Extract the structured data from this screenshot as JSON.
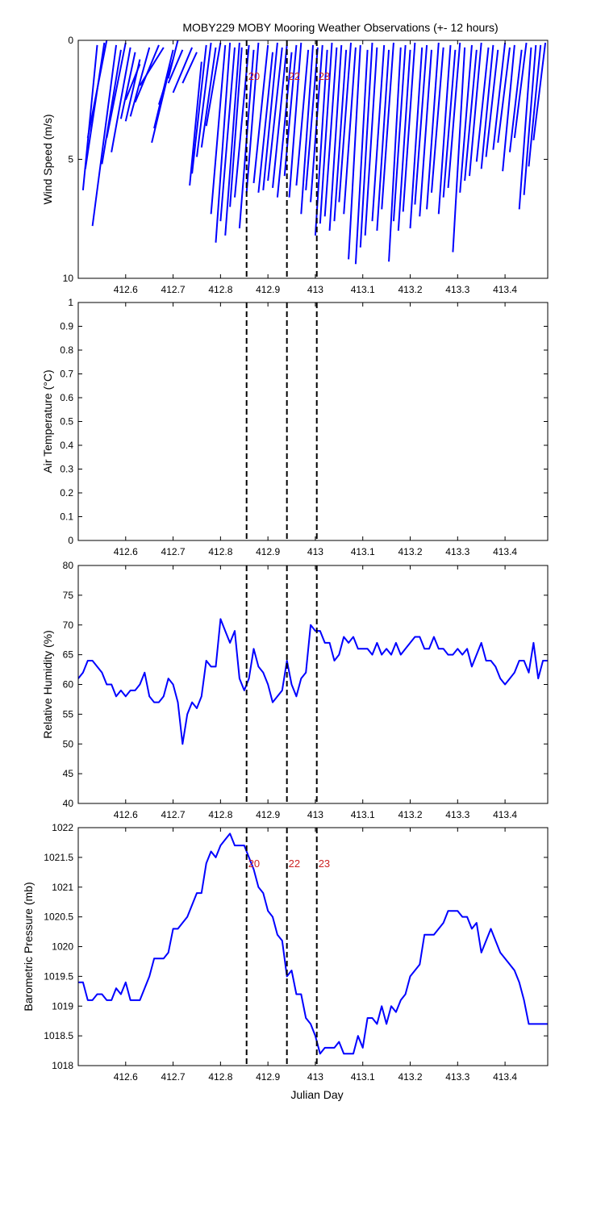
{
  "figure": {
    "title": "MOBY229 MOBY Mooring Weather Observations (+- 12 hours)",
    "xlabel": "Julian Day"
  },
  "colors": {
    "series": "#0000ff",
    "marker_line": "#000000",
    "marker_label": "#cc2222",
    "axes": "#000000",
    "background": "#ffffff"
  },
  "chart_data": [
    {
      "id": "wind",
      "type": "line",
      "ylabel": "Wind Speed (m/s)",
      "ylim": [
        0,
        10
      ],
      "y_reversed": true,
      "xlim": [
        412.5,
        413.49
      ],
      "xticks": [
        412.6,
        412.7,
        412.8,
        412.9,
        413,
        413.1,
        413.2,
        413.3,
        413.4
      ],
      "xticklabels": [
        "412.6",
        "412.7",
        "412.8",
        "412.9",
        "413",
        "413.1",
        "413.2",
        "413.3",
        "413.4"
      ],
      "yticks": [
        0,
        5,
        10
      ],
      "yticklabels": [
        "0",
        "5",
        "10"
      ],
      "show_marker_labels": true,
      "stick_segments": [
        {
          "x0": 412.51,
          "y0": 6.3,
          "x1": 412.54,
          "y1": 0.2
        },
        {
          "x0": 412.515,
          "y0": 5.4,
          "x1": 412.555,
          "y1": 0.1
        },
        {
          "x0": 412.52,
          "y0": 4.1,
          "x1": 412.56,
          "y1": 0.0
        },
        {
          "x0": 412.53,
          "y0": 7.8,
          "x1": 412.58,
          "y1": 0.2
        },
        {
          "x0": 412.55,
          "y0": 5.2,
          "x1": 412.59,
          "y1": 0.4
        },
        {
          "x0": 412.56,
          "y0": 4.1,
          "x1": 412.6,
          "y1": 0.1
        },
        {
          "x0": 412.57,
          "y0": 4.7,
          "x1": 412.61,
          "y1": 0.3
        },
        {
          "x0": 412.59,
          "y0": 3.3,
          "x1": 412.62,
          "y1": 0.5
        },
        {
          "x0": 412.6,
          "y0": 3.4,
          "x1": 412.63,
          "y1": 0.8
        },
        {
          "x0": 412.61,
          "y0": 3.2,
          "x1": 412.65,
          "y1": 0.3
        },
        {
          "x0": 412.62,
          "y0": 2.6,
          "x1": 412.67,
          "y1": 0.2
        },
        {
          "x0": 412.63,
          "y0": 1.9,
          "x1": 412.68,
          "y1": 0.3
        },
        {
          "x0": 412.6,
          "y0": 2.5,
          "x1": 412.63,
          "y1": 1.0
        },
        {
          "x0": 412.655,
          "y0": 4.3,
          "x1": 412.69,
          "y1": 1.4
        },
        {
          "x0": 412.66,
          "y0": 3.7,
          "x1": 412.7,
          "y1": 0.4
        },
        {
          "x0": 412.67,
          "y0": 2.7,
          "x1": 412.7,
          "y1": 0.8
        },
        {
          "x0": 412.69,
          "y0": 1.8,
          "x1": 412.72,
          "y1": 0.4
        },
        {
          "x0": 412.7,
          "y0": 2.2,
          "x1": 412.74,
          "y1": 0.3
        },
        {
          "x0": 412.69,
          "y0": 1.6,
          "x1": 412.71,
          "y1": 0.0
        },
        {
          "x0": 412.72,
          "y0": 1.8,
          "x1": 412.75,
          "y1": 0.5
        },
        {
          "x0": 412.735,
          "y0": 6.1,
          "x1": 412.76,
          "y1": 0.9
        },
        {
          "x0": 412.74,
          "y0": 5.6,
          "x1": 412.77,
          "y1": 0.2
        },
        {
          "x0": 412.75,
          "y0": 4.9,
          "x1": 412.78,
          "y1": 0.1
        },
        {
          "x0": 412.76,
          "y0": 4.5,
          "x1": 412.79,
          "y1": 0.3
        },
        {
          "x0": 412.77,
          "y0": 3.6,
          "x1": 412.8,
          "y1": 0.1
        },
        {
          "x0": 412.78,
          "y0": 7.3,
          "x1": 412.81,
          "y1": 0.2
        },
        {
          "x0": 412.79,
          "y0": 8.5,
          "x1": 412.82,
          "y1": 0.1
        },
        {
          "x0": 412.8,
          "y0": 7.6,
          "x1": 412.83,
          "y1": 0.3
        },
        {
          "x0": 412.81,
          "y0": 8.2,
          "x1": 412.84,
          "y1": 0.1
        },
        {
          "x0": 412.82,
          "y0": 7.0,
          "x1": 412.845,
          "y1": 0.3
        },
        {
          "x0": 412.83,
          "y0": 6.6,
          "x1": 412.86,
          "y1": 0.2
        },
        {
          "x0": 412.84,
          "y0": 7.9,
          "x1": 412.87,
          "y1": 0.4
        },
        {
          "x0": 412.855,
          "y0": 6.4,
          "x1": 412.88,
          "y1": 0.1
        },
        {
          "x0": 412.87,
          "y0": 6.0,
          "x1": 412.9,
          "y1": 0.2
        },
        {
          "x0": 412.88,
          "y0": 6.4,
          "x1": 412.91,
          "y1": 0.5
        },
        {
          "x0": 412.89,
          "y0": 6.3,
          "x1": 412.92,
          "y1": 0.1
        },
        {
          "x0": 412.9,
          "y0": 5.9,
          "x1": 412.93,
          "y1": 0.3
        },
        {
          "x0": 412.91,
          "y0": 6.2,
          "x1": 412.94,
          "y1": 0.2
        },
        {
          "x0": 412.92,
          "y0": 6.6,
          "x1": 412.95,
          "y1": 0.5
        },
        {
          "x0": 412.935,
          "y0": 5.7,
          "x1": 412.96,
          "y1": 0.2
        },
        {
          "x0": 412.945,
          "y0": 6.6,
          "x1": 412.97,
          "y1": 0.1
        },
        {
          "x0": 412.96,
          "y0": 6.1,
          "x1": 412.985,
          "y1": 0.4
        },
        {
          "x0": 412.97,
          "y0": 7.3,
          "x1": 412.995,
          "y1": 0.2
        },
        {
          "x0": 412.98,
          "y0": 6.3,
          "x1": 413.005,
          "y1": 0.3
        },
        {
          "x0": 412.99,
          "y0": 6.8,
          "x1": 413.015,
          "y1": 0.2
        },
        {
          "x0": 413.0,
          "y0": 8.2,
          "x1": 413.025,
          "y1": 0.4
        },
        {
          "x0": 413.01,
          "y0": 7.7,
          "x1": 413.035,
          "y1": 0.1
        },
        {
          "x0": 413.02,
          "y0": 7.4,
          "x1": 413.045,
          "y1": 0.3
        },
        {
          "x0": 413.03,
          "y0": 8.0,
          "x1": 413.055,
          "y1": 0.2
        },
        {
          "x0": 413.04,
          "y0": 7.6,
          "x1": 413.065,
          "y1": 0.4
        },
        {
          "x0": 413.05,
          "y0": 6.8,
          "x1": 413.075,
          "y1": 0.1
        },
        {
          "x0": 413.06,
          "y0": 7.3,
          "x1": 413.085,
          "y1": 0.3
        },
        {
          "x0": 413.07,
          "y0": 9.2,
          "x1": 413.095,
          "y1": 0.2
        },
        {
          "x0": 413.085,
          "y0": 9.4,
          "x1": 413.11,
          "y1": 0.4
        },
        {
          "x0": 413.095,
          "y0": 8.7,
          "x1": 413.12,
          "y1": 0.1
        },
        {
          "x0": 413.105,
          "y0": 8.2,
          "x1": 413.13,
          "y1": 0.3
        },
        {
          "x0": 413.12,
          "y0": 7.6,
          "x1": 413.145,
          "y1": 0.2
        },
        {
          "x0": 413.13,
          "y0": 8.0,
          "x1": 413.155,
          "y1": 0.4
        },
        {
          "x0": 413.14,
          "y0": 7.1,
          "x1": 413.165,
          "y1": 0.1
        },
        {
          "x0": 413.155,
          "y0": 9.3,
          "x1": 413.18,
          "y1": 0.3
        },
        {
          "x0": 413.165,
          "y0": 7.6,
          "x1": 413.19,
          "y1": 0.2
        },
        {
          "x0": 413.175,
          "y0": 8.0,
          "x1": 413.2,
          "y1": 0.4
        },
        {
          "x0": 413.185,
          "y0": 7.2,
          "x1": 413.21,
          "y1": 0.1
        },
        {
          "x0": 413.2,
          "y0": 7.9,
          "x1": 413.225,
          "y1": 0.3
        },
        {
          "x0": 413.21,
          "y0": 6.9,
          "x1": 413.235,
          "y1": 0.2
        },
        {
          "x0": 413.22,
          "y0": 7.4,
          "x1": 413.245,
          "y1": 0.4
        },
        {
          "x0": 413.235,
          "y0": 7.1,
          "x1": 413.26,
          "y1": 0.1
        },
        {
          "x0": 413.245,
          "y0": 6.4,
          "x1": 413.27,
          "y1": 0.3
        },
        {
          "x0": 413.26,
          "y0": 7.3,
          "x1": 413.285,
          "y1": 0.2
        },
        {
          "x0": 413.27,
          "y0": 6.6,
          "x1": 413.295,
          "y1": 0.4
        },
        {
          "x0": 413.28,
          "y0": 6.2,
          "x1": 413.305,
          "y1": 0.1
        },
        {
          "x0": 413.29,
          "y0": 8.9,
          "x1": 413.315,
          "y1": 0.3
        },
        {
          "x0": 413.305,
          "y0": 6.4,
          "x1": 413.33,
          "y1": 0.2
        },
        {
          "x0": 413.315,
          "y0": 5.9,
          "x1": 413.34,
          "y1": 0.4
        },
        {
          "x0": 413.325,
          "y0": 5.7,
          "x1": 413.35,
          "y1": 0.1
        },
        {
          "x0": 413.34,
          "y0": 5.1,
          "x1": 413.365,
          "y1": 0.3
        },
        {
          "x0": 413.35,
          "y0": 5.4,
          "x1": 413.375,
          "y1": 0.2
        },
        {
          "x0": 413.36,
          "y0": 4.9,
          "x1": 413.385,
          "y1": 0.4
        },
        {
          "x0": 413.375,
          "y0": 4.6,
          "x1": 413.4,
          "y1": 0.1
        },
        {
          "x0": 413.385,
          "y0": 4.3,
          "x1": 413.41,
          "y1": 0.3
        },
        {
          "x0": 413.395,
          "y0": 5.5,
          "x1": 413.42,
          "y1": 0.2
        },
        {
          "x0": 413.41,
          "y0": 4.7,
          "x1": 413.435,
          "y1": 0.4
        },
        {
          "x0": 413.42,
          "y0": 4.1,
          "x1": 413.445,
          "y1": 0.1
        },
        {
          "x0": 413.43,
          "y0": 7.1,
          "x1": 413.455,
          "y1": 0.3
        },
        {
          "x0": 413.44,
          "y0": 6.5,
          "x1": 413.465,
          "y1": 0.2
        },
        {
          "x0": 413.45,
          "y0": 5.3,
          "x1": 413.475,
          "y1": 0.2
        },
        {
          "x0": 413.46,
          "y0": 4.2,
          "x1": 413.485,
          "y1": 0.1
        }
      ]
    },
    {
      "id": "airtemp",
      "type": "line",
      "ylabel": "Air Temperature (°C)",
      "ylim": [
        0,
        1
      ],
      "xlim": [
        412.5,
        413.49
      ],
      "xticks": [
        412.6,
        412.7,
        412.8,
        412.9,
        413,
        413.1,
        413.2,
        413.3,
        413.4
      ],
      "xticklabels": [
        "412.6",
        "412.7",
        "412.8",
        "412.9",
        "413",
        "413.1",
        "413.2",
        "413.3",
        "413.4"
      ],
      "yticks": [
        0,
        0.1,
        0.2,
        0.3,
        0.4,
        0.5,
        0.6,
        0.7,
        0.8,
        0.9,
        1
      ],
      "yticklabels": [
        "0",
        "0.1",
        "0.2",
        "0.3",
        "0.4",
        "0.5",
        "0.6",
        "0.7",
        "0.8",
        "0.9",
        "1"
      ],
      "show_marker_labels": false,
      "x": [],
      "y": []
    },
    {
      "id": "humidity",
      "type": "line",
      "ylabel": "Relative Humidity (%)",
      "ylim": [
        40,
        80
      ],
      "xlim": [
        412.5,
        413.49
      ],
      "xticks": [
        412.6,
        412.7,
        412.8,
        412.9,
        413,
        413.1,
        413.2,
        413.3,
        413.4
      ],
      "xticklabels": [
        "412.6",
        "412.7",
        "412.8",
        "412.9",
        "413",
        "413.1",
        "413.2",
        "413.3",
        "413.4"
      ],
      "yticks": [
        40,
        45,
        50,
        55,
        60,
        65,
        70,
        75,
        80
      ],
      "yticklabels": [
        "40",
        "45",
        "50",
        "55",
        "60",
        "65",
        "70",
        "75",
        "80"
      ],
      "show_marker_labels": false,
      "x": [
        412.5,
        412.51,
        412.52,
        412.53,
        412.54,
        412.55,
        412.56,
        412.57,
        412.58,
        412.59,
        412.6,
        412.61,
        412.62,
        412.63,
        412.64,
        412.65,
        412.66,
        412.67,
        412.68,
        412.69,
        412.7,
        412.71,
        412.72,
        412.73,
        412.74,
        412.75,
        412.76,
        412.77,
        412.78,
        412.79,
        412.8,
        412.81,
        412.82,
        412.83,
        412.84,
        412.85,
        412.86,
        412.87,
        412.88,
        412.89,
        412.9,
        412.91,
        412.92,
        412.93,
        412.94,
        412.95,
        412.96,
        412.97,
        412.98,
        412.99,
        413.0,
        413.01,
        413.02,
        413.03,
        413.04,
        413.05,
        413.06,
        413.07,
        413.08,
        413.09,
        413.1,
        413.11,
        413.12,
        413.13,
        413.14,
        413.15,
        413.16,
        413.17,
        413.18,
        413.19,
        413.2,
        413.21,
        413.22,
        413.23,
        413.24,
        413.25,
        413.26,
        413.27,
        413.28,
        413.29,
        413.3,
        413.31,
        413.32,
        413.33,
        413.34,
        413.35,
        413.36,
        413.37,
        413.38,
        413.39,
        413.4,
        413.41,
        413.42,
        413.43,
        413.44,
        413.45,
        413.46,
        413.47,
        413.48,
        413.49
      ],
      "y": [
        61,
        62,
        64,
        64,
        63,
        62,
        60,
        60,
        58,
        59,
        58,
        59,
        59,
        60,
        62,
        58,
        57,
        57,
        58,
        61,
        60,
        57,
        50,
        55,
        57,
        56,
        58,
        64,
        63,
        63,
        71,
        69,
        67,
        69,
        61,
        59,
        61,
        66,
        63,
        62,
        60,
        57,
        58,
        59,
        64,
        60,
        58,
        61,
        62,
        70,
        69,
        69,
        67,
        67,
        64,
        65,
        68,
        67,
        68,
        66,
        66,
        66,
        65,
        67,
        65,
        66,
        65,
        67,
        65,
        66,
        67,
        68,
        68,
        66,
        66,
        68,
        66,
        66,
        65,
        65,
        66,
        65,
        66,
        63,
        65,
        67,
        64,
        64,
        63,
        61,
        60,
        61,
        62,
        64,
        64,
        62,
        67,
        61,
        64,
        64
      ]
    },
    {
      "id": "pressure",
      "type": "line",
      "ylabel": "Barometric Pressure (mb)",
      "ylim": [
        1018,
        1022
      ],
      "xlim": [
        412.5,
        413.49
      ],
      "xticks": [
        412.6,
        412.7,
        412.8,
        412.9,
        413,
        413.1,
        413.2,
        413.3,
        413.4
      ],
      "xticklabels": [
        "412.6",
        "412.7",
        "412.8",
        "412.9",
        "413",
        "413.1",
        "413.2",
        "413.3",
        "413.4"
      ],
      "yticks": [
        1018,
        1018.5,
        1019,
        1019.5,
        1020,
        1020.5,
        1021,
        1021.5,
        1022
      ],
      "yticklabels": [
        "1018",
        "1018.5",
        "1019",
        "1019.5",
        "1020",
        "1020.5",
        "1021",
        "1021.5",
        "1022"
      ],
      "show_marker_labels": true,
      "x": [
        412.5,
        412.51,
        412.52,
        412.53,
        412.54,
        412.55,
        412.56,
        412.57,
        412.58,
        412.59,
        412.6,
        412.61,
        412.62,
        412.63,
        412.64,
        412.65,
        412.66,
        412.67,
        412.68,
        412.69,
        412.7,
        412.71,
        412.72,
        412.73,
        412.74,
        412.75,
        412.76,
        412.77,
        412.78,
        412.79,
        412.8,
        412.81,
        412.82,
        412.83,
        412.84,
        412.85,
        412.86,
        412.87,
        412.88,
        412.89,
        412.9,
        412.91,
        412.92,
        412.93,
        412.94,
        412.95,
        412.96,
        412.97,
        412.98,
        412.99,
        413.0,
        413.01,
        413.02,
        413.03,
        413.04,
        413.05,
        413.06,
        413.07,
        413.08,
        413.09,
        413.1,
        413.11,
        413.12,
        413.13,
        413.14,
        413.15,
        413.16,
        413.17,
        413.18,
        413.19,
        413.2,
        413.21,
        413.22,
        413.23,
        413.24,
        413.25,
        413.26,
        413.27,
        413.28,
        413.29,
        413.3,
        413.31,
        413.32,
        413.33,
        413.34,
        413.35,
        413.36,
        413.37,
        413.38,
        413.39,
        413.4,
        413.41,
        413.42,
        413.43,
        413.44,
        413.45,
        413.46,
        413.47,
        413.48,
        413.49
      ],
      "y": [
        1019.4,
        1019.4,
        1019.1,
        1019.1,
        1019.2,
        1019.2,
        1019.1,
        1019.1,
        1019.3,
        1019.2,
        1019.4,
        1019.1,
        1019.1,
        1019.1,
        1019.3,
        1019.5,
        1019.8,
        1019.8,
        1019.8,
        1019.9,
        1020.3,
        1020.3,
        1020.4,
        1020.5,
        1020.7,
        1020.9,
        1020.9,
        1021.4,
        1021.6,
        1021.5,
        1021.7,
        1021.8,
        1021.9,
        1021.7,
        1021.7,
        1021.7,
        1021.5,
        1021.3,
        1021.0,
        1020.9,
        1020.6,
        1020.5,
        1020.2,
        1020.1,
        1019.5,
        1019.6,
        1019.2,
        1019.2,
        1018.8,
        1018.7,
        1018.5,
        1018.2,
        1018.3,
        1018.3,
        1018.3,
        1018.4,
        1018.2,
        1018.2,
        1018.2,
        1018.5,
        1018.3,
        1018.8,
        1018.8,
        1018.7,
        1019.0,
        1018.7,
        1019.0,
        1018.9,
        1019.1,
        1019.2,
        1019.5,
        1019.6,
        1019.7,
        1020.2,
        1020.2,
        1020.2,
        1020.3,
        1020.4,
        1020.6,
        1020.6,
        1020.6,
        1020.5,
        1020.5,
        1020.3,
        1020.4,
        1019.9,
        1020.1,
        1020.3,
        1020.1,
        1019.9,
        1019.8,
        1019.7,
        1019.6,
        1019.4,
        1019.1,
        1018.7,
        1018.7,
        1018.7,
        1018.7,
        1018.7
      ]
    }
  ],
  "markers": [
    {
      "x": 412.855,
      "label": "20"
    },
    {
      "x": 412.94,
      "label": "22"
    },
    {
      "x": 413.003,
      "label": "23"
    }
  ]
}
